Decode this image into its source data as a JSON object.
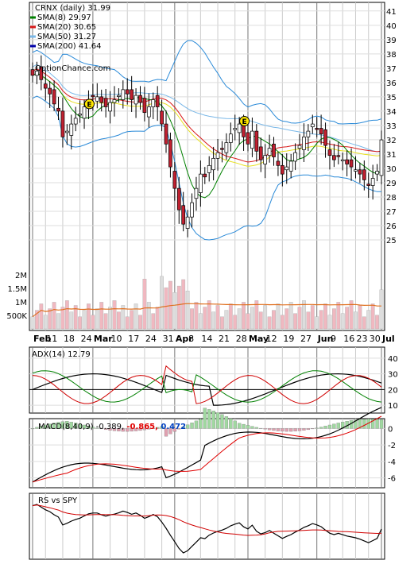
{
  "chart_data": {
    "type": "line",
    "ticker": "CRNX",
    "period": "(daily)",
    "last_price": "31.99",
    "watermark": "OptionChance.com",
    "legend": [
      {
        "label": "SMA(8)",
        "value": "29.97",
        "color": "#008000"
      },
      {
        "label": "SMA(20)",
        "value": "30.65",
        "color": "#d81818"
      },
      {
        "label": "SMA(50)",
        "value": "31.27",
        "color": "#7ab8e8"
      },
      {
        "label": "SMA(200)",
        "value": "41.64",
        "color": "#0000aa"
      }
    ],
    "colors": {
      "bollinger": "#2a8ad8",
      "boll_mid": "#e8e020",
      "up": "#f0f080",
      "down": "#c02030",
      "volume": "#f0b8c0",
      "volume_ma": "#e07020"
    },
    "price_axis": {
      "ylim": [
        24,
        41.6
      ],
      "ticks": [
        25,
        26,
        27,
        28,
        29,
        30,
        31,
        32,
        33,
        34,
        35,
        36,
        37,
        38,
        39,
        40,
        41
      ]
    },
    "dates": [
      "Feb",
      "11",
      "18",
      "24",
      "Mar",
      "10",
      "17",
      "24",
      "31",
      "Apr",
      "8",
      "14",
      "21",
      "28",
      "May",
      "12",
      "19",
      "27",
      "Jun",
      "9",
      "16",
      "23",
      "30",
      "Jul"
    ],
    "earnings_marker": "E",
    "closes": [
      36.5,
      36.8,
      36.2,
      35.6,
      35.2,
      34.5,
      34.0,
      32.2,
      32.6,
      33.1,
      33.5,
      33.8,
      34.3,
      34.8,
      35.0,
      35.0,
      34.6,
      34.3,
      34.6,
      34.8,
      35.1,
      35.5,
      35.2,
      34.8,
      35.1,
      34.6,
      33.9,
      34.3,
      34.8,
      34.3,
      33.1,
      31.7,
      30.1,
      28.6,
      27.1,
      26.1,
      26.6,
      27.6,
      28.6,
      29.6,
      29.4,
      30.2,
      30.7,
      31.1,
      31.4,
      31.8,
      32.4,
      32.8,
      33.1,
      32.2,
      31.7,
      32.6,
      31.2,
      30.6,
      30.9,
      31.4,
      30.8,
      30.2,
      29.6,
      30.1,
      30.5,
      31.1,
      31.6,
      32.2,
      32.6,
      33.1,
      32.8,
      32.4,
      31.6,
      30.9,
      30.6,
      30.9,
      30.6,
      30.3,
      30.1,
      29.9,
      29.6,
      29.2,
      28.8,
      29.3,
      29.8,
      31.99
    ],
    "volume_axis": {
      "ylim": [
        0,
        2300000
      ],
      "ticks": [
        {
          "value": 500000,
          "label": "500K"
        },
        {
          "value": 1000000,
          "label": "1M"
        },
        {
          "value": 1500000,
          "label": "1.5M"
        },
        {
          "value": 2000000,
          "label": "2M"
        }
      ]
    },
    "adx": {
      "label": "ADX(14)",
      "value": "12.79",
      "ylim": [
        5,
        47
      ],
      "ticks": [
        10,
        20,
        30,
        40
      ]
    },
    "macd": {
      "label": "MACD(8,40,9)",
      "value": "-0.389",
      "signal": "-0.865",
      "hist": "0.472",
      "signal_color": "#e00000",
      "hist_color": "#0040c0",
      "ylim": [
        -7.2,
        1.2
      ],
      "ticks": [
        -6,
        -4,
        -2,
        0
      ]
    },
    "rs": {
      "label": "RS vs SPY"
    }
  }
}
